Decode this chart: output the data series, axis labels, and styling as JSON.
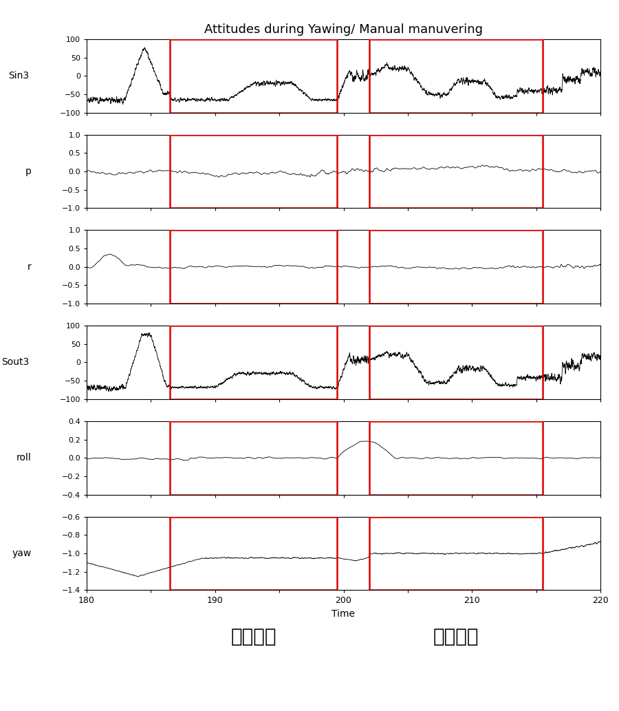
{
  "title": "Attitudes during Yawing/ Manual manuvering",
  "xlim": [
    180,
    220
  ],
  "xlabel": "Time",
  "subplots": [
    {
      "label": "Sin3",
      "ylim": [
        -100,
        100
      ],
      "yticks": [
        -100,
        -50,
        0,
        50,
        100
      ]
    },
    {
      "label": "p",
      "ylim": [
        -1.0,
        1.0
      ],
      "yticks": [
        -1.0,
        -0.5,
        0.0,
        0.5,
        1.0
      ]
    },
    {
      "label": "r",
      "ylim": [
        -1.0,
        1.0
      ],
      "yticks": [
        -1.0,
        -0.5,
        0.0,
        0.5,
        1.0
      ]
    },
    {
      "label": "Sout3",
      "ylim": [
        -100,
        100
      ],
      "yticks": [
        -100,
        -50,
        0,
        50,
        100
      ]
    },
    {
      "label": "roll",
      "ylim": [
        -0.4,
        0.4
      ],
      "yticks": [
        -0.4,
        -0.2,
        0.0,
        0.2,
        0.4
      ]
    },
    {
      "label": "yaw",
      "ylim": [
        -1.4,
        -0.6
      ],
      "yticks": [
        -1.4,
        -1.2,
        -1.0,
        -0.8,
        -0.6
      ]
    }
  ],
  "rect1_x1": 186.5,
  "rect1_x2": 199.5,
  "rect2_x1": 202.0,
  "rect2_x2": 215.5,
  "rect1_label": "전진비행",
  "rect2_label": "후진비행",
  "rect_color": "#dd0000",
  "line_color": "#000000",
  "background_color": "#ffffff"
}
